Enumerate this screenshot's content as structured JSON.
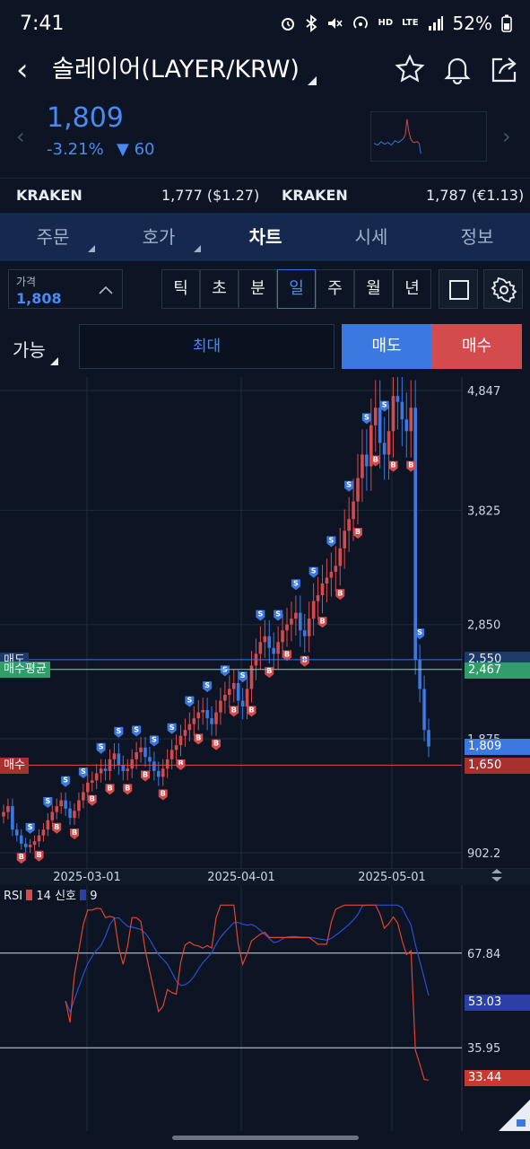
{
  "status_bar": {
    "time": "7:41",
    "battery": "52%",
    "icons": [
      "alarm-icon",
      "bluetooth-icon",
      "mute-icon",
      "hotspot-icon",
      "hd-voice-icon",
      "lte-icon",
      "signal-icon",
      "battery-icon"
    ],
    "hd": "HD",
    "lte": "LTE"
  },
  "header": {
    "title": "솔레이어(LAYER/KRW)",
    "icons": [
      "back-icon",
      "star-icon",
      "bell-icon",
      "share-icon"
    ]
  },
  "price": {
    "value": "1,809",
    "change_pct": "-3.21%",
    "change_arrow": "▼",
    "change_abs": "60"
  },
  "exchange_row": {
    "left_name": "KRAKEN",
    "left_value": "1,777 ($1.27)",
    "right_name": "KRAKEN",
    "right_value": "1,787 (€1.13)"
  },
  "tabs": [
    {
      "label": "주문",
      "active": false
    },
    {
      "label": "호가",
      "active": false
    },
    {
      "label": "차트",
      "active": true
    },
    {
      "label": "시세",
      "active": false
    },
    {
      "label": "정보",
      "active": false
    }
  ],
  "controls": {
    "price_label": "가격",
    "price_value": "1,808",
    "timeframes": [
      "틱",
      "초",
      "분",
      "일",
      "주",
      "월",
      "년"
    ],
    "selected_timeframe": "일"
  },
  "order_row": {
    "available": "가능",
    "max_label": "최대",
    "sell": "매도",
    "buy": "매수"
  },
  "chart_labels": {
    "y_ticks": [
      "4,847",
      "3,825",
      "2,850",
      "1,875",
      "902.2"
    ],
    "x_ticks": [
      "2025-03-01",
      "2025-04-01",
      "2025-05-01"
    ],
    "sell_line_label": "매도",
    "avg_line_label": "매수평균",
    "buy_line_label": "매수",
    "sell_line_value": "2,550",
    "avg_line_value": "2,467",
    "current_value": "1,809",
    "buy_line_value": "1,650",
    "rsi_label": "RSI",
    "rsi_period": "14",
    "signal_label": "신호",
    "signal_period": "9",
    "rsi_ticks": [
      "67.84",
      "35.95"
    ],
    "rsi_signal_value": "53.03",
    "rsi_value": "33.44",
    "buy_marker": "B",
    "sell_marker": "S"
  },
  "colors": {
    "up": "#d44b4e",
    "down": "#3b78e0",
    "avg": "#2f9e6a",
    "tab_bg": "#14294d",
    "bg": "#0d1524"
  },
  "chart_data": {
    "type": "candlestick",
    "price_axis": {
      "min": 902.2,
      "max": 4847
    },
    "x_ticks": [
      "2025-03-01",
      "2025-04-01",
      "2025-05-01"
    ],
    "closes": [
      1250,
      1300,
      1100,
      1050,
      980,
      950,
      970,
      1000,
      1050,
      1100,
      1180,
      1250,
      1300,
      1350,
      1280,
      1200,
      1260,
      1350,
      1420,
      1500,
      1520,
      1580,
      1620,
      1600,
      1700,
      1750,
      1650,
      1600,
      1620,
      1700,
      1760,
      1800,
      1720,
      1680,
      1600,
      1550,
      1620,
      1700,
      1780,
      1820,
      1900,
      1950,
      2000,
      2050,
      2100,
      2120,
      2050,
      2000,
      2100,
      2200,
      2250,
      2300,
      2350,
      2200,
      2150,
      2300,
      2500,
      2600,
      2700,
      2750,
      2650,
      2600,
      2700,
      2800,
      2850,
      2900,
      2950,
      2800,
      2750,
      2900,
      3050,
      3100,
      3200,
      3250,
      3300,
      3350,
      3500,
      3650,
      3750,
      3900,
      4100,
      4300,
      4200,
      4550,
      4700,
      4400,
      4300,
      4500,
      4800,
      4750,
      4600,
      4500,
      4700,
      2550,
      2300,
      1950,
      1809
    ],
    "sell_level": 2550,
    "avg_level": 2467,
    "buy_level": 1650,
    "current": 1809,
    "rsi": {
      "period": 14,
      "signal_period": 9,
      "ticks": [
        67.84,
        35.95
      ],
      "last_rsi": 33.44,
      "last_signal": 53.03
    }
  }
}
